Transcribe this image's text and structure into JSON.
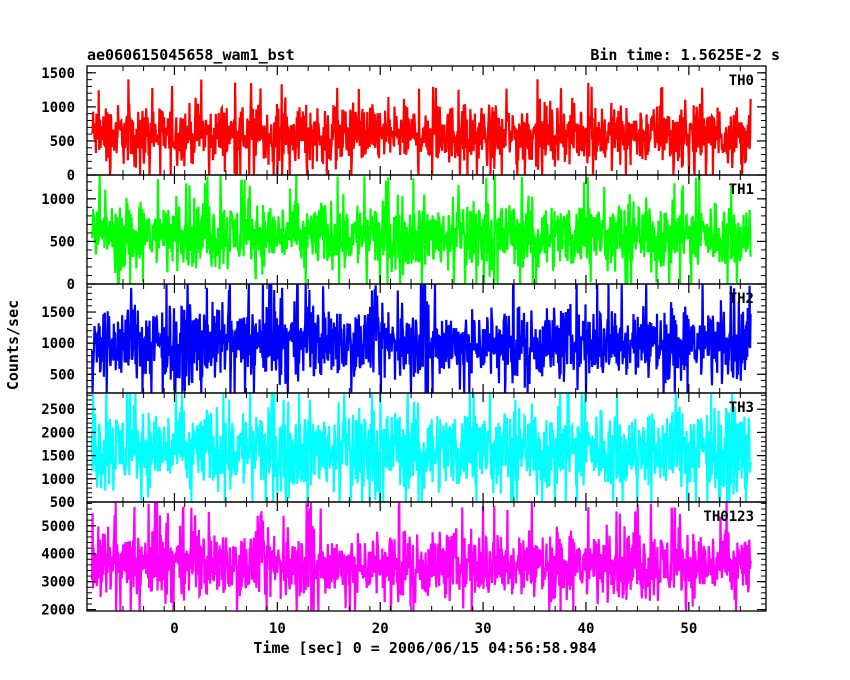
{
  "header": {
    "title": "ae060615045658_wam1_bst",
    "bin_time": "Bin time: 1.5625E-2 s"
  },
  "chart_data": {
    "type": "line",
    "title": "ae060615045658_wam1_bst",
    "subtitle": "Bin time: 1.5625E-2 s",
    "xlabel": "Time [sec] 0 = 2006/06/15 04:56:58.984",
    "ylabel": "Counts/sec",
    "xlim": [
      -8.5,
      57.5
    ],
    "x_ticks": [
      0,
      10,
      20,
      30,
      40,
      50
    ],
    "x_range_data": [
      -8,
      56
    ],
    "bin_time_s": 0.015625,
    "grid": false,
    "panels": [
      {
        "name": "TH0",
        "color": "#ff0000",
        "ylim": [
          0,
          1600
        ],
        "y_ticks": [
          0,
          500,
          1000,
          1500
        ],
        "mean": 600,
        "band": [
          0,
          1600
        ],
        "typical_range": [
          150,
          1100
        ]
      },
      {
        "name": "TH1",
        "color": "#00ff00",
        "ylim": [
          0,
          1280
        ],
        "y_ticks": [
          0,
          500,
          1000
        ],
        "mean": 580,
        "band": [
          0,
          1280
        ],
        "typical_range": [
          200,
          1050
        ]
      },
      {
        "name": "TH2",
        "color": "#0000ff",
        "ylim": [
          200,
          1950
        ],
        "y_ticks": [
          500,
          1000,
          1500
        ],
        "mean": 1000,
        "band": [
          200,
          1950
        ],
        "typical_range": [
          400,
          1700
        ]
      },
      {
        "name": "TH3",
        "color": "#00ffff",
        "ylim": [
          500,
          2850
        ],
        "y_ticks": [
          500,
          1000,
          1500,
          2000,
          2500
        ],
        "mean": 1650,
        "band": [
          500,
          2850
        ],
        "typical_range": [
          700,
          2600
        ]
      },
      {
        "name": "TH0123",
        "color": "#ff00ff",
        "ylim": [
          1950,
          5850
        ],
        "y_ticks": [
          2000,
          3000,
          4000,
          5000
        ],
        "mean": 3600,
        "band": [
          1950,
          5850
        ],
        "typical_range": [
          2300,
          5000
        ]
      }
    ]
  }
}
